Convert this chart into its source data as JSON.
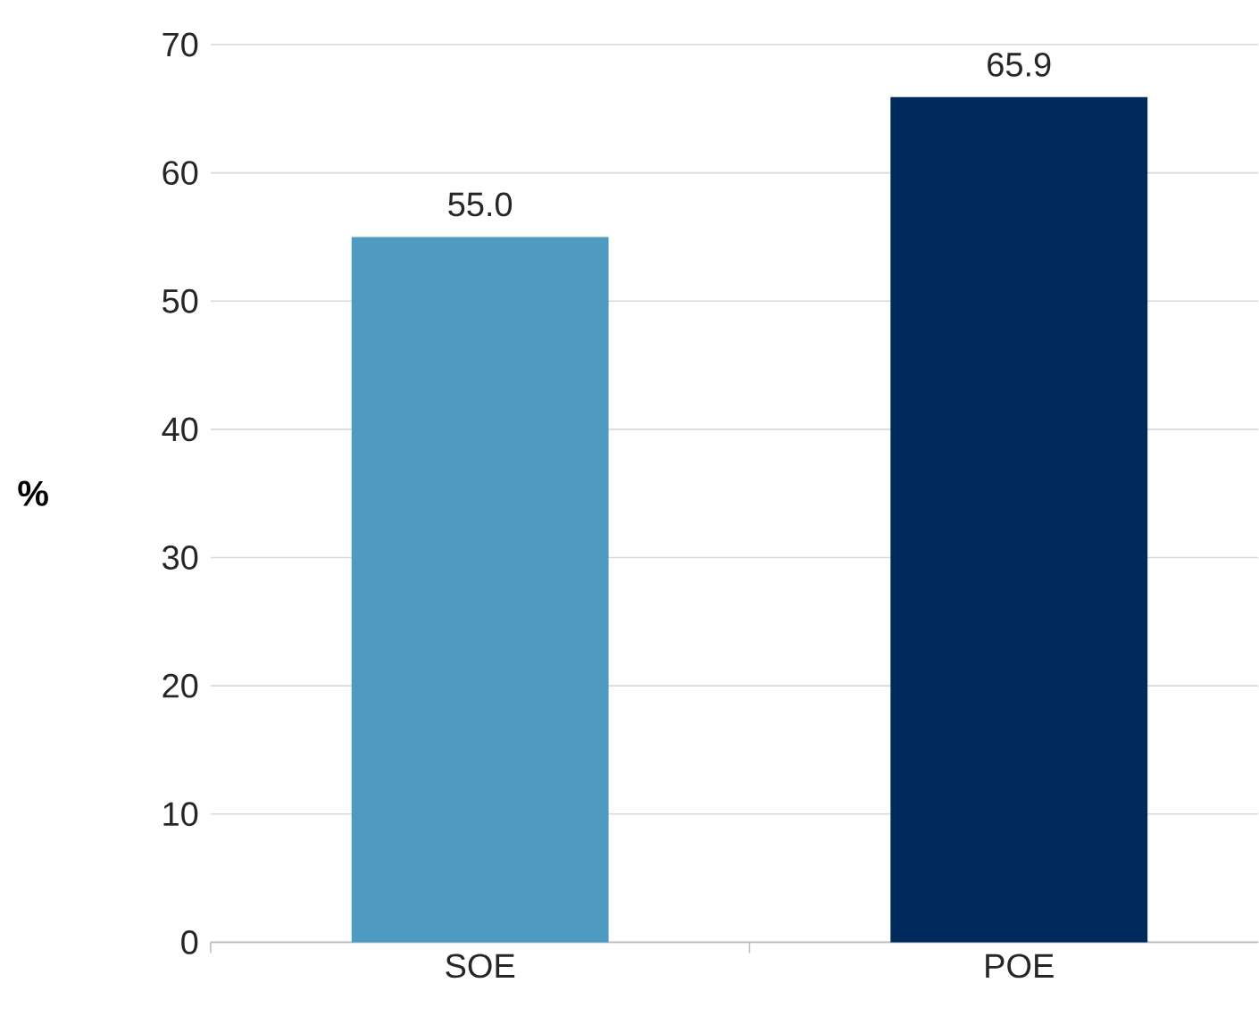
{
  "chart_data": {
    "type": "bar",
    "ylabel": "%",
    "categories": [
      "SOE",
      "POE"
    ],
    "values": [
      55.0,
      65.9
    ],
    "colors": [
      "#4f9ac0",
      "#002a5c"
    ],
    "value_labels": [
      "55.0",
      "65.9"
    ],
    "ylim": [
      0,
      70
    ],
    "yticks": [
      0,
      10,
      20,
      30,
      40,
      50,
      60,
      70
    ],
    "grid": "y"
  }
}
